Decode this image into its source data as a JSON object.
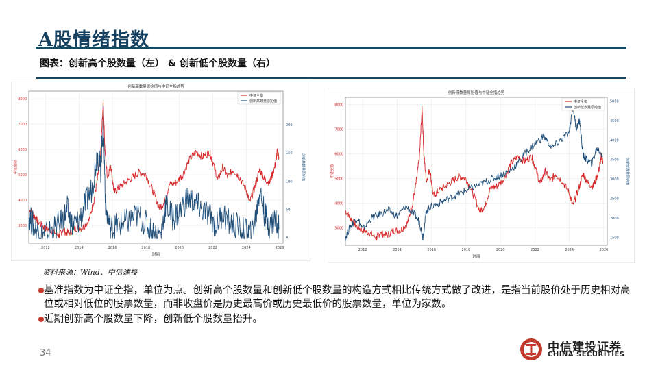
{
  "header": {
    "title": "A股情绪指数",
    "subtitle": "图表：创新高个股数量（左） & 创新低个股数量（右）"
  },
  "source": "资料来源：Wind、中信建投",
  "bullets": [
    "基准指数为中证全指，单位为点。创新高个股数量和创新低个股数量的构造方式相比传统方式做了改进，是指当前股价处于历史相对高位或相对低位的股票数量，而非收盘价是历史最高价或历史最低价的股票数量，单位为家数。",
    "近期创新高个股数量下降，创新低个股数量抬升。"
  ],
  "page_number": "34",
  "logo": {
    "cn": "中信建投证券",
    "en": "CHINA SECURITIES"
  },
  "colors": {
    "index_line": "#d62728",
    "count_line": "#1f4e79",
    "accent": "#14495f",
    "logo_red": "#c0392b"
  },
  "chart_data": [
    {
      "type": "line",
      "title": "创新高数量原始值与中证全指趋势",
      "xlabel": "时间",
      "ylabel_left": "中证全指",
      "ylabel_right": "创新高数量原始值",
      "x_ticks": [
        "2012",
        "2014",
        "2016",
        "2018",
        "2020",
        "2022",
        "2024",
        "2026"
      ],
      "xlim": [
        2011.0,
        2026.2
      ],
      "y_left_ticks": [
        3000,
        4000,
        5000,
        6000,
        7000,
        8000
      ],
      "y_left_lim": [
        2300,
        8300
      ],
      "y_right_ticks": [
        0,
        50,
        100,
        150,
        200
      ],
      "y_right_lim": [
        -10,
        260
      ],
      "legend": [
        "中证全指",
        "创新高数量原始值"
      ],
      "legend_position": "top-right",
      "grid": true,
      "series": [
        {
          "name": "中证全指",
          "axis": "left",
          "x": [
            2011.0,
            2011.3,
            2011.6,
            2012.0,
            2012.4,
            2012.8,
            2013.0,
            2013.4,
            2013.8,
            2014.2,
            2014.6,
            2014.9,
            2015.1,
            2015.3,
            2015.45,
            2015.55,
            2015.7,
            2015.9,
            2016.1,
            2016.4,
            2016.8,
            2017.2,
            2017.6,
            2018.0,
            2018.4,
            2018.8,
            2019.1,
            2019.4,
            2019.8,
            2020.2,
            2020.6,
            2021.0,
            2021.4,
            2021.8,
            2022.0,
            2022.3,
            2022.6,
            2022.9,
            2023.2,
            2023.6,
            2024.0,
            2024.2,
            2024.5,
            2024.8,
            2025.1,
            2025.4,
            2025.7,
            2025.85,
            2025.95
          ],
          "y": [
            3700,
            3400,
            3100,
            2900,
            2800,
            2600,
            2800,
            2700,
            2900,
            2900,
            3200,
            4000,
            4800,
            5900,
            7900,
            6000,
            4900,
            5400,
            4300,
            4500,
            4700,
            4900,
            5100,
            5000,
            4400,
            3700,
            3900,
            4600,
            4700,
            5000,
            5600,
            5900,
            5700,
            5900,
            5500,
            4800,
            5300,
            4900,
            5200,
            4900,
            4400,
            3900,
            4500,
            5200,
            4800,
            4700,
            5300,
            5900,
            5700
          ]
        },
        {
          "name": "创新高数量原始值",
          "axis": "right",
          "x": [
            2011.0,
            2011.3,
            2011.7,
            2012.0,
            2012.5,
            2013.0,
            2013.3,
            2013.6,
            2014.0,
            2014.4,
            2014.8,
            2015.1,
            2015.3,
            2015.45,
            2015.6,
            2015.9,
            2016.2,
            2016.6,
            2017.0,
            2017.5,
            2018.0,
            2018.4,
            2018.9,
            2019.2,
            2019.6,
            2020.0,
            2020.5,
            2021.0,
            2021.3,
            2021.8,
            2022.2,
            2022.6,
            2023.0,
            2023.5,
            2024.0,
            2024.3,
            2024.6,
            2024.8,
            2025.1,
            2025.4,
            2025.7,
            2025.95
          ],
          "y": [
            40,
            20,
            10,
            5,
            15,
            30,
            50,
            20,
            30,
            60,
            90,
            150,
            120,
            210,
            50,
            15,
            20,
            25,
            30,
            40,
            25,
            10,
            5,
            60,
            35,
            45,
            70,
            60,
            50,
            40,
            20,
            45,
            25,
            20,
            10,
            5,
            40,
            85,
            40,
            20,
            35,
            15
          ]
        }
      ]
    },
    {
      "type": "line",
      "title": "创新低数量原始值与中证全指趋势",
      "xlabel": "时间",
      "ylabel_left": "中证全指",
      "ylabel_right": "创新低数量原始值",
      "x_ticks": [
        "2012",
        "2014",
        "2016",
        "2018",
        "2020",
        "2022",
        "2024",
        "2026"
      ],
      "xlim": [
        2011.0,
        2026.2
      ],
      "y_left_ticks": [
        3000,
        4000,
        5000,
        6000,
        7000,
        8000
      ],
      "y_left_lim": [
        2300,
        8300
      ],
      "y_right_ticks": [
        1500,
        2000,
        2500,
        3000,
        3500,
        4000,
        4500,
        5000
      ],
      "y_right_lim": [
        1300,
        5100
      ],
      "legend": [
        "中证全指",
        "创新低数量原始值"
      ],
      "legend_position": "top-right",
      "grid": true,
      "series": [
        {
          "name": "中证全指",
          "axis": "left",
          "x": [
            2011.0,
            2011.3,
            2011.6,
            2012.0,
            2012.4,
            2012.8,
            2013.0,
            2013.4,
            2013.8,
            2014.2,
            2014.6,
            2014.9,
            2015.1,
            2015.3,
            2015.45,
            2015.55,
            2015.7,
            2015.9,
            2016.1,
            2016.4,
            2016.8,
            2017.2,
            2017.6,
            2018.0,
            2018.4,
            2018.8,
            2019.1,
            2019.4,
            2019.8,
            2020.2,
            2020.6,
            2021.0,
            2021.4,
            2021.8,
            2022.0,
            2022.3,
            2022.6,
            2022.9,
            2023.2,
            2023.6,
            2024.0,
            2024.2,
            2024.5,
            2024.8,
            2025.1,
            2025.4,
            2025.7,
            2025.85,
            2025.95
          ],
          "y": [
            3700,
            3400,
            3100,
            2900,
            2800,
            2600,
            2800,
            2700,
            2900,
            2900,
            3200,
            4000,
            4800,
            5900,
            7900,
            6000,
            4900,
            5400,
            4300,
            4500,
            4700,
            4900,
            5100,
            5000,
            4400,
            3700,
            3900,
            4600,
            4700,
            5000,
            5600,
            5900,
            5700,
            5900,
            5500,
            4800,
            5300,
            4900,
            5200,
            4900,
            4400,
            3900,
            4500,
            5200,
            4800,
            4700,
            5300,
            5900,
            5700
          ]
        },
        {
          "name": "创新低数量原始值",
          "axis": "right",
          "x": [
            2011.0,
            2011.3,
            2011.7,
            2012.0,
            2012.5,
            2013.0,
            2013.5,
            2014.0,
            2014.5,
            2015.0,
            2015.3,
            2015.5,
            2015.7,
            2016.0,
            2016.5,
            2017.0,
            2017.5,
            2018.0,
            2018.5,
            2019.0,
            2019.5,
            2020.0,
            2020.5,
            2021.0,
            2021.5,
            2022.0,
            2022.5,
            2023.0,
            2023.5,
            2024.0,
            2024.2,
            2024.4,
            2024.6,
            2024.8,
            2025.0,
            2025.3,
            2025.6,
            2025.95
          ],
          "y": [
            1500,
            1800,
            2000,
            1700,
            2000,
            2100,
            2200,
            2050,
            2300,
            2100,
            1900,
            1500,
            2200,
            2300,
            2400,
            2500,
            2600,
            2700,
            2800,
            2900,
            3000,
            3100,
            3200,
            3400,
            3700,
            3900,
            4100,
            3800,
            4000,
            4200,
            4900,
            4300,
            4500,
            3600,
            3500,
            3400,
            3800,
            3600
          ]
        }
      ]
    }
  ]
}
